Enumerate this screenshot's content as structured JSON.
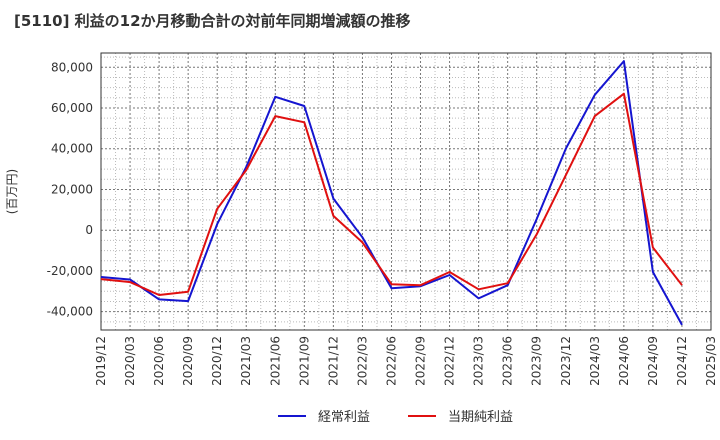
{
  "chart_data": {
    "type": "line",
    "title": "[5110]  利益の12か月移動合計の対前年同期増減額の推移",
    "ylabel": "(百万円)",
    "xlabel": "",
    "x": [
      "2019/12",
      "2020/03",
      "2020/06",
      "2020/09",
      "2020/12",
      "2021/03",
      "2021/06",
      "2021/09",
      "2021/12",
      "2022/03",
      "2022/06",
      "2022/09",
      "2022/12",
      "2023/03",
      "2023/06",
      "2023/09",
      "2023/12",
      "2024/03",
      "2024/06",
      "2024/09",
      "2024/12",
      "2025/03"
    ],
    "ylim": [
      -49000,
      87000
    ],
    "yticks": [
      -40000,
      -20000,
      0,
      20000,
      40000,
      60000,
      80000
    ],
    "ytick_labels": [
      "-40,000",
      "-20,000",
      "0",
      "20,000",
      "40,000",
      "60,000",
      "80,000"
    ],
    "grid": true,
    "legend_position": "bottom-center",
    "series": [
      {
        "name": "経常利益",
        "color": "#1515d0",
        "values": [
          -23000,
          -24200,
          -34000,
          -34800,
          3000,
          31000,
          65500,
          61000,
          15500,
          -3500,
          -28500,
          -27500,
          -22000,
          -33500,
          -27000,
          5500,
          40000,
          66500,
          83000,
          -20500,
          -46500,
          null
        ]
      },
      {
        "name": "当期純利益",
        "color": "#e01010",
        "values": [
          -24000,
          -25500,
          -31800,
          -30200,
          10500,
          29500,
          56000,
          53000,
          7000,
          -6000,
          -26500,
          -27000,
          -20500,
          -29000,
          -26000,
          -2000,
          27000,
          56000,
          67000,
          -8500,
          -27000,
          null
        ]
      }
    ]
  }
}
